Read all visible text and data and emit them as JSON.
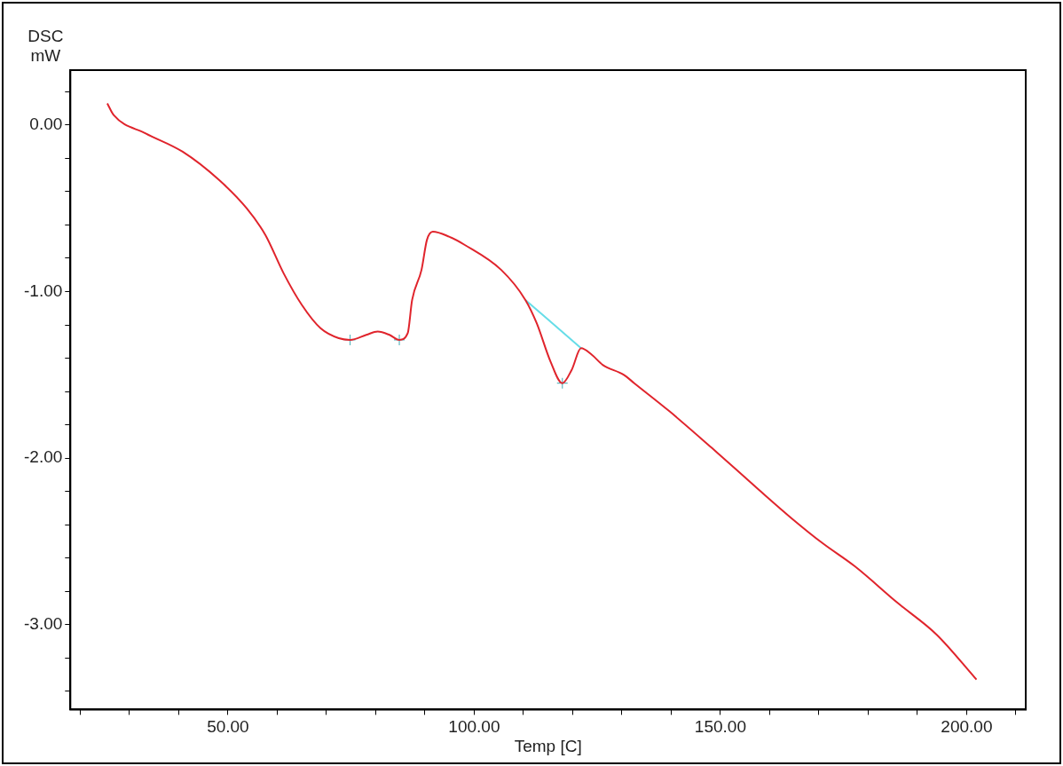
{
  "chart_data": {
    "type": "line",
    "xlabel": "Temp [C]",
    "ylabel": "DSC\nmW",
    "xlim": [
      18,
      212
    ],
    "ylim": [
      -3.51,
      0.33
    ],
    "xticks": [
      {
        "value": 20,
        "label": null
      },
      {
        "value": 30,
        "label": null
      },
      {
        "value": 40,
        "label": null
      },
      {
        "value": 50,
        "label": "50.00"
      },
      {
        "value": 60,
        "label": null
      },
      {
        "value": 70,
        "label": null
      },
      {
        "value": 80,
        "label": null
      },
      {
        "value": 90,
        "label": null
      },
      {
        "value": 100,
        "label": "100.00"
      },
      {
        "value": 110,
        "label": null
      },
      {
        "value": 120,
        "label": null
      },
      {
        "value": 130,
        "label": null
      },
      {
        "value": 140,
        "label": null
      },
      {
        "value": 150,
        "label": "150.00"
      },
      {
        "value": 160,
        "label": null
      },
      {
        "value": 170,
        "label": null
      },
      {
        "value": 180,
        "label": null
      },
      {
        "value": 190,
        "label": null
      },
      {
        "value": 200,
        "label": "200.00"
      },
      {
        "value": 210,
        "label": null
      }
    ],
    "yticks": [
      {
        "value": 0.2,
        "label": null
      },
      {
        "value": 0,
        "label": "0.00"
      },
      {
        "value": -0.2,
        "label": null
      },
      {
        "value": -0.4,
        "label": null
      },
      {
        "value": -0.6,
        "label": null
      },
      {
        "value": -0.8,
        "label": null
      },
      {
        "value": -1,
        "label": "-1.00"
      },
      {
        "value": -1.2,
        "label": null
      },
      {
        "value": -1.4,
        "label": null
      },
      {
        "value": -1.6,
        "label": null
      },
      {
        "value": -1.8,
        "label": null
      },
      {
        "value": -2,
        "label": "-2.00"
      },
      {
        "value": -2.2,
        "label": null
      },
      {
        "value": -2.4,
        "label": null
      },
      {
        "value": -2.6,
        "label": null
      },
      {
        "value": -2.8,
        "label": null
      },
      {
        "value": -3,
        "label": "-3.00"
      },
      {
        "value": -3.2,
        "label": null
      },
      {
        "value": -3.4,
        "label": null
      }
    ],
    "grid": false,
    "legend": false,
    "marker": "none",
    "line_style": "solid",
    "series": [
      {
        "type": "line",
        "color": "#e0242c",
        "x": [
          25.5,
          26.8,
          33.3,
          40.8,
          48.2,
          53.8,
          57.6,
          61.3,
          65.0,
          68.8,
          72.5,
          74.8,
          78.1,
          80.4,
          82.8,
          84.8,
          86.5,
          87.4,
          89.3,
          90.4,
          91.6,
          94.9,
          98.1,
          105.5,
          110.4,
          112.7,
          115.5,
          117.9,
          119.8,
          121.7,
          123.9,
          126.1,
          130.4,
          132.5,
          139.7,
          148.3,
          157.8,
          164.4,
          170.7,
          177.3,
          186.0,
          193.9,
          202.0
        ],
        "values": [
          0.13,
          0.06,
          -0.05,
          -0.16,
          -0.33,
          -0.5,
          -0.66,
          -0.89,
          -1.08,
          -1.22,
          -1.28,
          -1.29,
          -1.26,
          -1.24,
          -1.26,
          -1.29,
          -1.25,
          -1.05,
          -0.87,
          -0.69,
          -0.64,
          -0.67,
          -0.72,
          -0.87,
          -1.05,
          -1.19,
          -1.42,
          -1.55,
          -1.47,
          -1.34,
          -1.38,
          -1.44,
          -1.5,
          -1.55,
          -1.72,
          -1.94,
          -2.19,
          -2.36,
          -2.51,
          -2.65,
          -2.87,
          -3.06,
          -3.33
        ]
      },
      {
        "type": "line",
        "color": "#66dde8",
        "x": [
          110.4,
          121.7
        ],
        "values": [
          -1.05,
          -1.34
        ]
      },
      {
        "type": "scatter",
        "marker": "cross",
        "color": "#5fb8c0",
        "x": [
          74.8,
          84.8,
          117.9
        ],
        "values": [
          -1.29,
          -1.29,
          -1.55
        ]
      }
    ]
  }
}
